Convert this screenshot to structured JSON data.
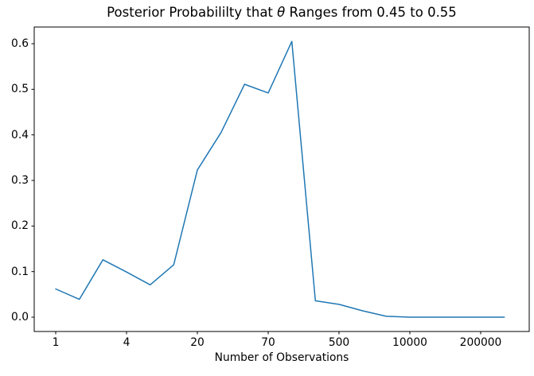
{
  "figure": {
    "title": {
      "prefix": "Posterior Probabililty that ",
      "theta": "θ",
      "suffix": " Ranges from 0.45 to 0.55",
      "full": "Posterior Probabililty that θ Ranges from 0.45 to 0.55"
    },
    "xlabel": "Number of Observations"
  },
  "chart_data": {
    "type": "line",
    "title": "Posterior Probabililty that θ Ranges from 0.45 to 0.55",
    "xlabel": "Number of Observations",
    "ylabel": "",
    "grid": false,
    "legend": "none",
    "background_color": "#ffffff",
    "spine_color": "#000000",
    "x_axis": {
      "style": "custom observation-count ticks, evenly spaced in pixels",
      "tick_labels": [
        "1",
        "4",
        "20",
        "70",
        "500",
        "10000",
        "200000"
      ],
      "tick_indices": [
        0,
        3,
        6,
        9,
        12,
        15,
        18
      ],
      "num_points": 20
    },
    "y_axis": {
      "ticks": [
        0.0,
        0.1,
        0.2,
        0.3,
        0.4,
        0.5,
        0.6
      ],
      "tick_labels": [
        "0.0",
        "0.1",
        "0.2",
        "0.3",
        "0.4",
        "0.5",
        "0.6"
      ],
      "lim": [
        -0.031,
        0.637
      ]
    },
    "series": [
      {
        "name": "posterior_probability",
        "color": "#1f77b4",
        "line_width": 1.5,
        "values": [
          0.062,
          0.039,
          0.126,
          0.099,
          0.071,
          0.115,
          0.323,
          0.405,
          0.511,
          0.492,
          0.605,
          0.036,
          0.028,
          0.014,
          0.002,
          0.0,
          0.0,
          0.0,
          0.0,
          0.0
        ]
      }
    ]
  }
}
